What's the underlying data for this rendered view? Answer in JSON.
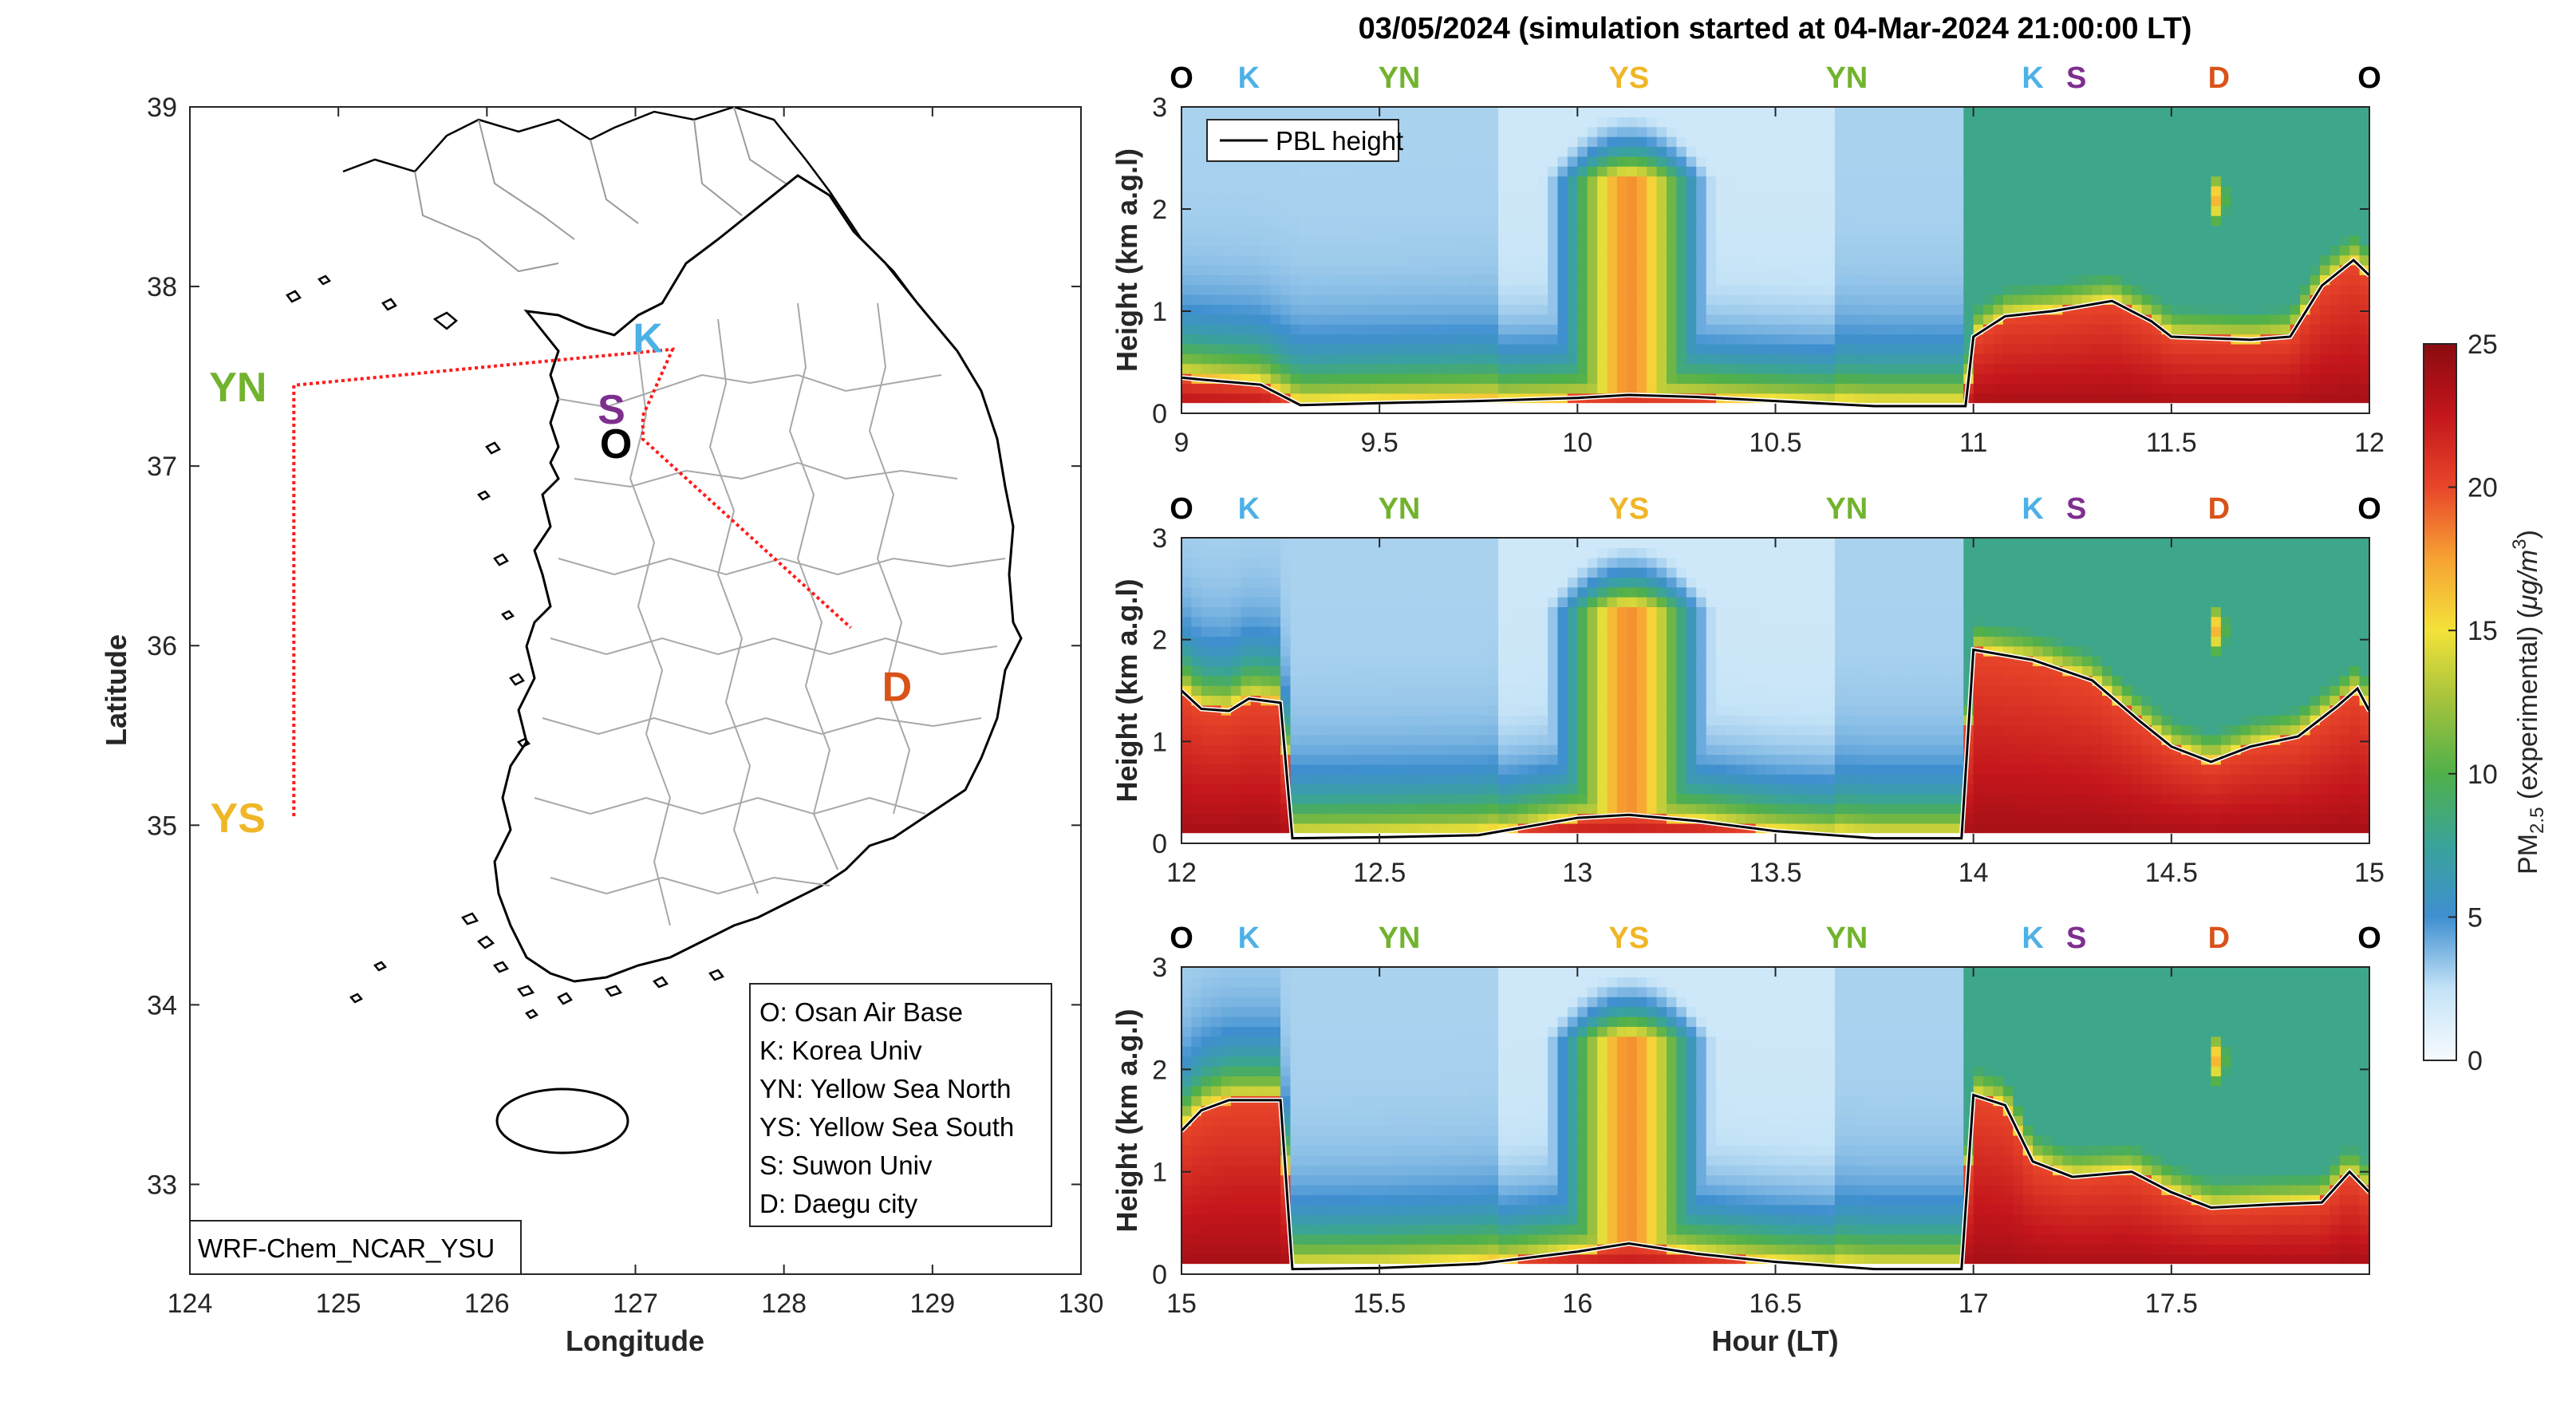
{
  "colors": {
    "O": "#000000",
    "K": "#4cb1e6",
    "YN": "#72b32e",
    "YS": "#efb627",
    "S": "#7e2f8e",
    "D": "#d95319",
    "track": "#ff1a1a",
    "pbl": "#000000"
  },
  "map": {
    "xlabel": "Longitude",
    "ylabel": "Latitude",
    "xlim": [
      124,
      130
    ],
    "ylim": [
      32.5,
      39
    ],
    "xticks": [
      "124",
      "125",
      "126",
      "127",
      "128",
      "129",
      "130"
    ],
    "yticks": [
      "33",
      "34",
      "35",
      "36",
      "37",
      "38",
      "39"
    ],
    "model_label": "WRF-Chem_NCAR_YSU",
    "legend": [
      "O: Osan Air Base",
      "K: Korea Univ",
      "YN: Yellow Sea North",
      "YS: Yellow Sea South",
      "S: Suwon Univ",
      "D: Daegu city"
    ],
    "sites": [
      {
        "code": "O",
        "lon": 127.03,
        "lat": 37.09
      },
      {
        "code": "K",
        "lon": 127.03,
        "lat": 37.59
      },
      {
        "code": "S",
        "lon": 127.0,
        "lat": 37.28
      },
      {
        "code": "D",
        "lon": 128.6,
        "lat": 35.87
      },
      {
        "code": "YN",
        "lon": 124.7,
        "lat": 37.45
      },
      {
        "code": "YS",
        "lon": 124.7,
        "lat": 35.05
      }
    ],
    "track_lonlat": [
      [
        124.7,
        35.05
      ],
      [
        124.7,
        37.45
      ],
      [
        126.6,
        37.6
      ],
      [
        127.25,
        37.65
      ],
      [
        127.05,
        37.28
      ],
      [
        127.05,
        37.15
      ],
      [
        128.45,
        36.1
      ]
    ]
  },
  "chart_data": {
    "type": "heatmap",
    "title": "03/05/2024 (simulation started at 04-Mar-2024 21:00:00 LT)",
    "ylabel": "Height (km a.g.l)",
    "xlabel": "Hour (LT)",
    "ylim": [
      0,
      3
    ],
    "yticks": [
      "0",
      "1",
      "2",
      "3"
    ],
    "legend": "PBL height",
    "colorbar": {
      "label_main": "PM",
      "label_sub": "2.5",
      "label_rest": " (experimental) (",
      "label_unit": "μg/m",
      "label_sup": "3",
      "label_end": ")",
      "range": [
        0,
        25
      ],
      "ticks": [
        "0",
        "5",
        "10",
        "15",
        "20",
        "25"
      ]
    },
    "panels": [
      {
        "xlim": [
          9,
          12
        ],
        "xticks": [
          "9",
          "9.5",
          "10",
          "10.5",
          "11",
          "11.5",
          "12"
        ],
        "site_labels": [
          {
            "code": "O",
            "x": 9.0
          },
          {
            "code": "K",
            "x": 9.17
          },
          {
            "code": "YN",
            "x": 9.55
          },
          {
            "code": "YS",
            "x": 10.13
          },
          {
            "code": "YN",
            "x": 10.68
          },
          {
            "code": "K",
            "x": 11.15
          },
          {
            "code": "S",
            "x": 11.26
          },
          {
            "code": "D",
            "x": 11.62
          },
          {
            "code": "O",
            "x": 12.0
          }
        ],
        "pbl": [
          [
            9.0,
            0.35
          ],
          [
            9.05,
            0.33
          ],
          [
            9.2,
            0.28
          ],
          [
            9.3,
            0.08
          ],
          [
            9.5,
            0.1
          ],
          [
            9.75,
            0.12
          ],
          [
            10.0,
            0.15
          ],
          [
            10.13,
            0.18
          ],
          [
            10.3,
            0.16
          ],
          [
            10.5,
            0.12
          ],
          [
            10.75,
            0.07
          ],
          [
            10.98,
            0.07
          ],
          [
            11.0,
            0.75
          ],
          [
            11.08,
            0.95
          ],
          [
            11.2,
            1.0
          ],
          [
            11.35,
            1.1
          ],
          [
            11.45,
            0.9
          ],
          [
            11.5,
            0.75
          ],
          [
            11.7,
            0.72
          ],
          [
            11.8,
            0.75
          ],
          [
            11.88,
            1.25
          ],
          [
            11.96,
            1.5
          ],
          [
            12.0,
            1.35
          ]
        ]
      },
      {
        "xlim": [
          12,
          15
        ],
        "xticks": [
          "12",
          "12.5",
          "13",
          "13.5",
          "14",
          "14.5",
          "15"
        ],
        "site_labels": [
          {
            "code": "O",
            "x": 12.0
          },
          {
            "code": "K",
            "x": 12.17
          },
          {
            "code": "YN",
            "x": 12.55
          },
          {
            "code": "YS",
            "x": 13.13
          },
          {
            "code": "YN",
            "x": 13.68
          },
          {
            "code": "K",
            "x": 14.15
          },
          {
            "code": "S",
            "x": 14.26
          },
          {
            "code": "D",
            "x": 14.62
          },
          {
            "code": "O",
            "x": 15.0
          }
        ],
        "pbl": [
          [
            12.0,
            1.5
          ],
          [
            12.05,
            1.32
          ],
          [
            12.12,
            1.3
          ],
          [
            12.17,
            1.42
          ],
          [
            12.25,
            1.38
          ],
          [
            12.28,
            0.05
          ],
          [
            12.5,
            0.06
          ],
          [
            12.75,
            0.08
          ],
          [
            13.0,
            0.25
          ],
          [
            13.13,
            0.28
          ],
          [
            13.3,
            0.22
          ],
          [
            13.5,
            0.12
          ],
          [
            13.75,
            0.05
          ],
          [
            13.97,
            0.05
          ],
          [
            14.0,
            1.9
          ],
          [
            14.15,
            1.8
          ],
          [
            14.3,
            1.6
          ],
          [
            14.42,
            1.2
          ],
          [
            14.5,
            0.95
          ],
          [
            14.6,
            0.8
          ],
          [
            14.7,
            0.95
          ],
          [
            14.82,
            1.05
          ],
          [
            14.92,
            1.35
          ],
          [
            14.97,
            1.52
          ],
          [
            15.0,
            1.3
          ]
        ]
      },
      {
        "xlim": [
          15,
          18
        ],
        "xticks": [
          "15",
          "15.5",
          "16",
          "16.5",
          "17",
          "17.5"
        ],
        "site_labels": [
          {
            "code": "O",
            "x": 15.0
          },
          {
            "code": "K",
            "x": 15.17
          },
          {
            "code": "YN",
            "x": 15.55
          },
          {
            "code": "YS",
            "x": 16.13
          },
          {
            "code": "YN",
            "x": 16.68
          },
          {
            "code": "K",
            "x": 17.15
          },
          {
            "code": "S",
            "x": 17.26
          },
          {
            "code": "D",
            "x": 17.62
          },
          {
            "code": "O",
            "x": 18.0
          }
        ],
        "pbl": [
          [
            15.0,
            1.4
          ],
          [
            15.05,
            1.6
          ],
          [
            15.12,
            1.7
          ],
          [
            15.25,
            1.7
          ],
          [
            15.28,
            0.05
          ],
          [
            15.5,
            0.06
          ],
          [
            15.75,
            0.1
          ],
          [
            16.0,
            0.22
          ],
          [
            16.13,
            0.3
          ],
          [
            16.3,
            0.2
          ],
          [
            16.5,
            0.12
          ],
          [
            16.75,
            0.05
          ],
          [
            16.97,
            0.05
          ],
          [
            17.0,
            1.75
          ],
          [
            17.08,
            1.65
          ],
          [
            17.15,
            1.1
          ],
          [
            17.25,
            0.95
          ],
          [
            17.4,
            1.0
          ],
          [
            17.5,
            0.8
          ],
          [
            17.6,
            0.65
          ],
          [
            17.75,
            0.68
          ],
          [
            17.88,
            0.7
          ],
          [
            17.95,
            1.0
          ],
          [
            18.0,
            0.8
          ]
        ]
      }
    ]
  }
}
